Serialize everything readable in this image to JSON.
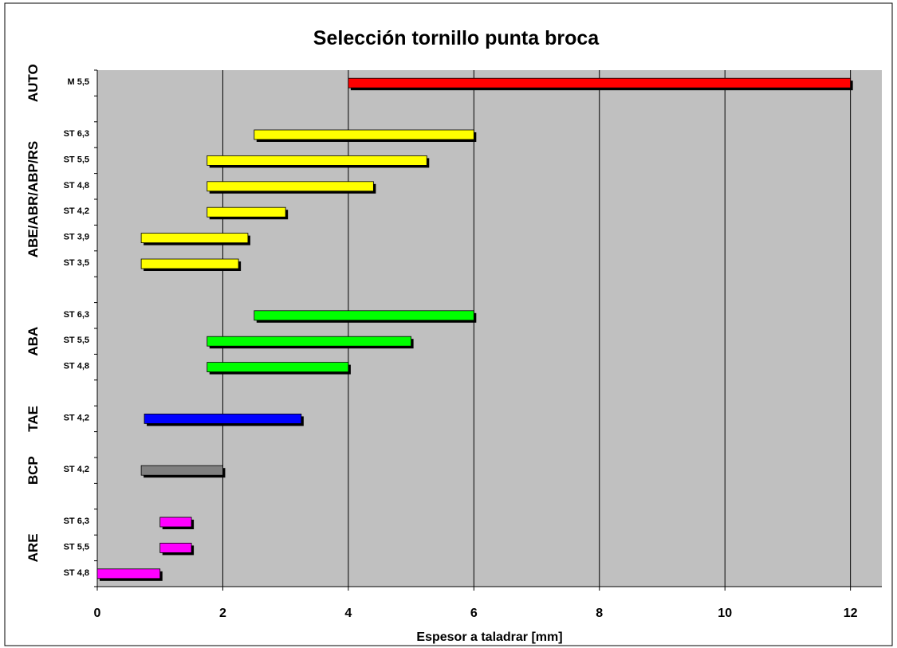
{
  "chart_data": {
    "type": "bar",
    "orientation": "horizontal",
    "style": "floating-range",
    "title": "Selección tornillo punta broca",
    "xlabel": "Espesor a taladrar [mm]",
    "xlim": [
      0,
      12.5
    ],
    "xticks": [
      0,
      2,
      4,
      6,
      8,
      10,
      12
    ],
    "grid": "vertical",
    "legend": "none",
    "colors": {
      "AUTO": "#ff0000",
      "ABE/ABR/ABP/RS": "#ffff00",
      "ABA": "#00ff00",
      "TAE": "#0000ff",
      "BCP": "#808080",
      "ARE": "#ff00ff"
    },
    "groups": [
      {
        "label": "AUTO",
        "items": [
          {
            "category": "M 5,5",
            "start": 4.0,
            "end": 12.0
          }
        ]
      },
      {
        "label": "ABE/ABR/ABP/RS",
        "items": [
          {
            "category": "ST 6,3",
            "start": 2.5,
            "end": 6.0
          },
          {
            "category": "ST 5,5",
            "start": 1.75,
            "end": 5.25
          },
          {
            "category": "ST 4,8",
            "start": 1.75,
            "end": 4.4
          },
          {
            "category": "ST 4,2",
            "start": 1.75,
            "end": 3.0
          },
          {
            "category": "ST 3,9",
            "start": 0.7,
            "end": 2.4
          },
          {
            "category": "ST 3,5",
            "start": 0.7,
            "end": 2.25
          }
        ]
      },
      {
        "label": "ABA",
        "items": [
          {
            "category": "ST 6,3",
            "start": 2.5,
            "end": 6.0
          },
          {
            "category": "ST 5,5",
            "start": 1.75,
            "end": 5.0
          },
          {
            "category": "ST 4,8",
            "start": 1.75,
            "end": 4.0
          }
        ]
      },
      {
        "label": "TAE",
        "items": [
          {
            "category": "ST 4,2",
            "start": 0.75,
            "end": 3.25
          }
        ]
      },
      {
        "label": "BCP",
        "items": [
          {
            "category": "ST 4,2",
            "start": 0.7,
            "end": 2.0
          }
        ]
      },
      {
        "label": "ARE",
        "items": [
          {
            "category": "ST 6,3",
            "start": 1.0,
            "end": 1.5
          },
          {
            "category": "ST 5,5",
            "start": 1.0,
            "end": 1.5
          },
          {
            "category": "ST 4,8",
            "start": 0.0,
            "end": 1.0
          }
        ]
      }
    ]
  }
}
